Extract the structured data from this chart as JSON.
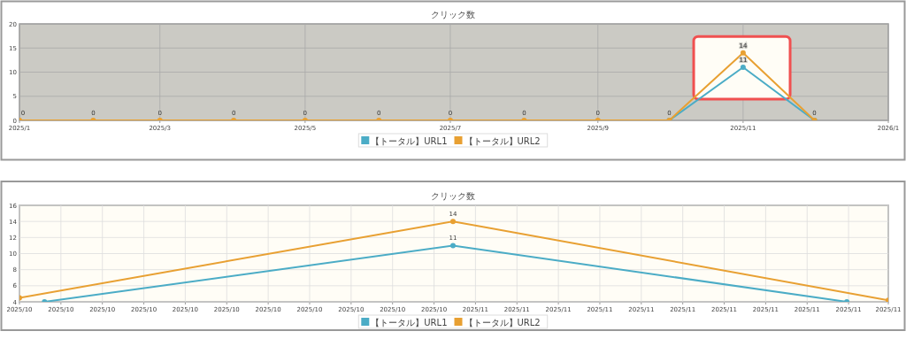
{
  "chart_data": [
    {
      "type": "line",
      "title": "クリック数",
      "x": [
        "2025-01",
        "2025-02",
        "2025-03",
        "2025-04",
        "2025-05",
        "2025-06",
        "2025-07",
        "2025-08",
        "2025-09",
        "2025-10",
        "2025-11",
        "2025-12"
      ],
      "series": [
        {
          "name": "【トータル】URL1",
          "color": "#4bacc6",
          "values": [
            null,
            null,
            null,
            null,
            null,
            null,
            null,
            null,
            null,
            0,
            11,
            0
          ],
          "value_labels": [
            null,
            null,
            null,
            null,
            null,
            null,
            null,
            null,
            null,
            null,
            "11",
            null
          ]
        },
        {
          "name": "【トータル】URL2",
          "color": "#e8a032",
          "values": [
            0,
            0,
            0,
            0,
            0,
            0,
            0,
            0,
            0,
            0,
            14,
            0
          ],
          "value_labels": [
            "0",
            "0",
            "0",
            "0",
            "0",
            "0",
            "0",
            "0",
            "0",
            "0",
            "14",
            "0"
          ]
        }
      ],
      "xlim": [
        "2025-01",
        "2026-01"
      ],
      "xticks": [
        {
          "value": "2025-01",
          "label": "2025/1"
        },
        {
          "value": "2025-03",
          "label": "2025/3"
        },
        {
          "value": "2025-05",
          "label": "2025/5"
        },
        {
          "value": "2025-07",
          "label": "2025/7"
        },
        {
          "value": "2025-09",
          "label": "2025/9"
        },
        {
          "value": "2025-11",
          "label": "2025/11"
        },
        {
          "value": "2026-01",
          "label": "2026/1"
        }
      ],
      "ylim": [
        0,
        20
      ],
      "yticks": [
        0,
        5,
        10,
        15,
        20
      ],
      "grid": true,
      "legend": "bottom",
      "marker": "circle",
      "line_style": "solid"
    },
    {
      "type": "line",
      "title": "クリック数",
      "series": [
        {
          "name": "【トータル】URL1",
          "color": "#4bacc6",
          "x": [
            "2025-10-12T07:00",
            "2025-11-01",
            "2025-11-20T00:00"
          ],
          "values": [
            4,
            11,
            4
          ],
          "value_labels": [
            null,
            "11",
            null
          ]
        },
        {
          "name": "【トータル】URL2",
          "color": "#e8a032",
          "x": [
            "2025-10-11T02:00",
            "2025-11-01",
            "2025-11-22T00:00"
          ],
          "values": [
            4.5,
            14,
            4.2
          ],
          "value_labels": [
            null,
            "14",
            null
          ]
        }
      ],
      "xlim": [
        "2025-10-11T02:00",
        "2025-11-22T00:00"
      ],
      "xticks": [
        {
          "value": "2025-10-11T02:00",
          "label": "2025/10"
        },
        {
          "value": "2025-10-13T02:00",
          "label": "2025/10"
        },
        {
          "value": "2025-10-15T02:00",
          "label": "2025/10"
        },
        {
          "value": "2025-10-17T02:00",
          "label": "2025/10"
        },
        {
          "value": "2025-10-19T02:00",
          "label": "2025/10"
        },
        {
          "value": "2025-10-21T02:00",
          "label": "2025/10"
        },
        {
          "value": "2025-10-23T02:00",
          "label": "2025/10"
        },
        {
          "value": "2025-10-25T02:00",
          "label": "2025/10"
        },
        {
          "value": "2025-10-27T02:00",
          "label": "2025/10"
        },
        {
          "value": "2025-10-29T02:00",
          "label": "2025/10"
        },
        {
          "value": "2025-10-31T02:00",
          "label": "2025/10"
        },
        {
          "value": "2025-11-02T02:00",
          "label": "2025/11"
        },
        {
          "value": "2025-11-04T02:00",
          "label": "2025/11"
        },
        {
          "value": "2025-11-06T02:00",
          "label": "2025/11"
        },
        {
          "value": "2025-11-08T02:00",
          "label": "2025/11"
        },
        {
          "value": "2025-11-10T02:00",
          "label": "2025/11"
        },
        {
          "value": "2025-11-12T02:00",
          "label": "2025/11"
        },
        {
          "value": "2025-11-14T02:00",
          "label": "2025/11"
        },
        {
          "value": "2025-11-16T02:00",
          "label": "2025/11"
        },
        {
          "value": "2025-11-18T02:00",
          "label": "2025/11"
        },
        {
          "value": "2025-11-20T02:00",
          "label": "2025/11"
        },
        {
          "value": "2025-11-22T00:00",
          "label": "2025/11"
        }
      ],
      "ylim": [
        4,
        16
      ],
      "yticks": [
        4,
        6,
        8,
        10,
        12,
        14,
        16
      ],
      "grid": true,
      "legend": "bottom",
      "marker": "circle",
      "line_style": "solid"
    }
  ]
}
